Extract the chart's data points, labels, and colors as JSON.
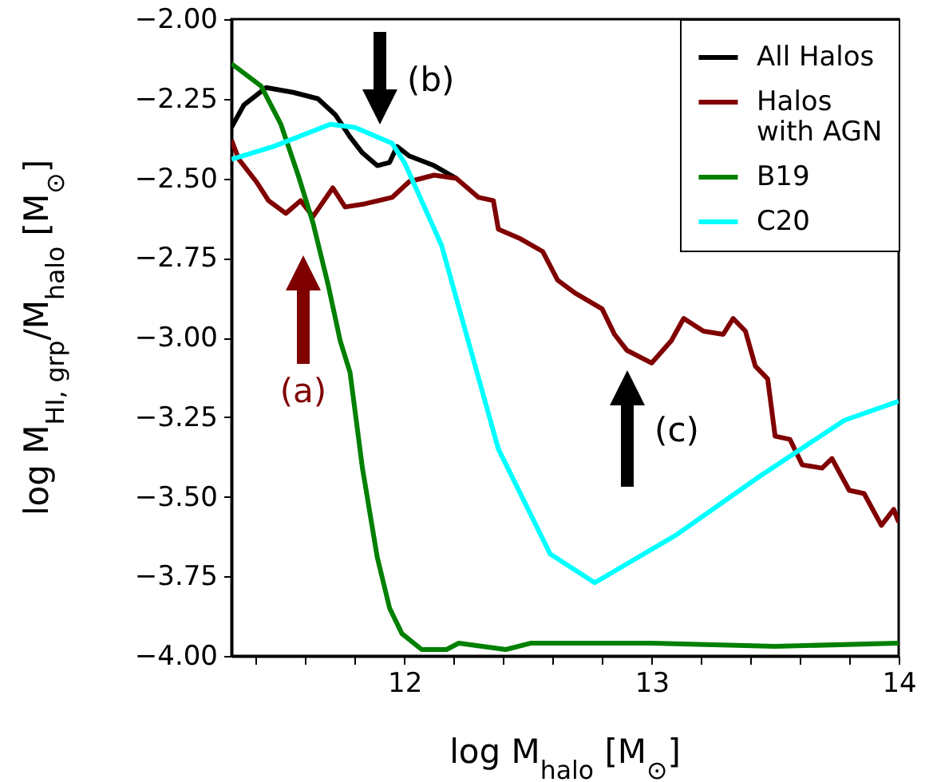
{
  "chart_data": {
    "type": "line",
    "xlabel": "log M$_{halo}$ [M$_{⊙}$]",
    "ylabel": "log M$_{HI, grp}$/M$_{halo}$ [M$_{⊙}$]",
    "xlim": [
      11.3,
      14
    ],
    "ylim": [
      -4,
      -2
    ],
    "xticks": [
      {
        "value": 11.4,
        "label": null
      },
      {
        "value": 11.6,
        "label": null
      },
      {
        "value": 11.8,
        "label": null
      },
      12,
      {
        "value": 12.2,
        "label": null
      },
      {
        "value": 12.4,
        "label": null
      },
      {
        "value": 12.6,
        "label": null
      },
      {
        "value": 12.8,
        "label": null
      },
      13,
      {
        "value": 13.2,
        "label": null
      },
      {
        "value": 13.4,
        "label": null
      },
      {
        "value": 13.6,
        "label": null
      },
      {
        "value": 13.8,
        "label": null
      },
      14
    ],
    "yticks": [
      {
        "value": -4,
        "label": "−4.00"
      },
      {
        "value": -3.75,
        "label": "−3.75"
      },
      {
        "value": -3.5,
        "label": "−3.50"
      },
      {
        "value": -3.25,
        "label": "−3.25"
      },
      {
        "value": -3,
        "label": "−3.00"
      },
      {
        "value": -2.75,
        "label": "−2.75"
      },
      {
        "value": -2.5,
        "label": "−2.50"
      },
      {
        "value": -2.25,
        "label": "−2.25"
      },
      {
        "value": -2,
        "label": "−2.00"
      }
    ],
    "grid": false,
    "legend": "top right",
    "line_style": "solid",
    "marker": "none",
    "annotations": [
      "(a)",
      "(b)",
      "(c)"
    ],
    "series": [
      {
        "name": "All Halos",
        "color": "#000000",
        "x": [
          11.3,
          11.35,
          11.44,
          11.55,
          11.65,
          11.72,
          11.78,
          11.83,
          11.89,
          11.94,
          11.97,
          12.02,
          12.12,
          12.21
        ],
        "values": [
          -2.34,
          -2.27,
          -2.215,
          -2.23,
          -2.25,
          -2.3,
          -2.37,
          -2.42,
          -2.46,
          -2.45,
          -2.4,
          -2.43,
          -2.46,
          -2.5
        ]
      },
      {
        "name": "Halos with AGN",
        "color": "#800000",
        "x": [
          11.3,
          11.33,
          11.4,
          11.45,
          11.52,
          11.58,
          11.63,
          11.71,
          11.76,
          11.84,
          11.95,
          12.02,
          12.12,
          12.21,
          12.3,
          12.36,
          12.38,
          12.47,
          12.56,
          12.62,
          12.69,
          12.8,
          12.85,
          12.9,
          13.0,
          13.08,
          13.13,
          13.21,
          13.29,
          13.33,
          13.38,
          13.42,
          13.47,
          13.5,
          13.56,
          13.61,
          13.69,
          13.73,
          13.8,
          13.86,
          13.93,
          13.98,
          14.0
        ],
        "values": [
          -2.38,
          -2.44,
          -2.51,
          -2.57,
          -2.61,
          -2.57,
          -2.62,
          -2.53,
          -2.59,
          -2.58,
          -2.56,
          -2.51,
          -2.49,
          -2.5,
          -2.56,
          -2.57,
          -2.66,
          -2.69,
          -2.73,
          -2.82,
          -2.86,
          -2.91,
          -2.99,
          -3.04,
          -3.08,
          -3.01,
          -2.94,
          -2.98,
          -2.99,
          -2.94,
          -2.98,
          -3.09,
          -3.13,
          -3.31,
          -3.32,
          -3.4,
          -3.41,
          -3.38,
          -3.48,
          -3.49,
          -3.59,
          -3.54,
          -3.58
        ]
      },
      {
        "name": "B19",
        "color": "#008000",
        "x": [
          11.3,
          11.42,
          11.5,
          11.57,
          11.63,
          11.69,
          11.74,
          11.78,
          11.83,
          11.89,
          11.94,
          11.99,
          12.07,
          12.17,
          12.22,
          12.41,
          12.51,
          13.0,
          13.5,
          14.0
        ],
        "values": [
          -2.14,
          -2.21,
          -2.33,
          -2.49,
          -2.64,
          -2.83,
          -3.01,
          -3.11,
          -3.41,
          -3.69,
          -3.85,
          -3.93,
          -3.98,
          -3.98,
          -3.96,
          -3.98,
          -3.96,
          -3.96,
          -3.97,
          -3.96
        ]
      },
      {
        "name": "C20",
        "color": "#00ffff",
        "x": [
          11.3,
          11.47,
          11.7,
          11.8,
          11.95,
          12.0,
          12.15,
          12.38,
          12.59,
          12.77,
          13.1,
          13.43,
          13.78,
          14.0
        ],
        "values": [
          -2.44,
          -2.4,
          -2.33,
          -2.34,
          -2.39,
          -2.45,
          -2.71,
          -3.35,
          -3.68,
          -3.77,
          -3.62,
          -3.44,
          -3.26,
          -3.2
        ]
      }
    ]
  }
}
